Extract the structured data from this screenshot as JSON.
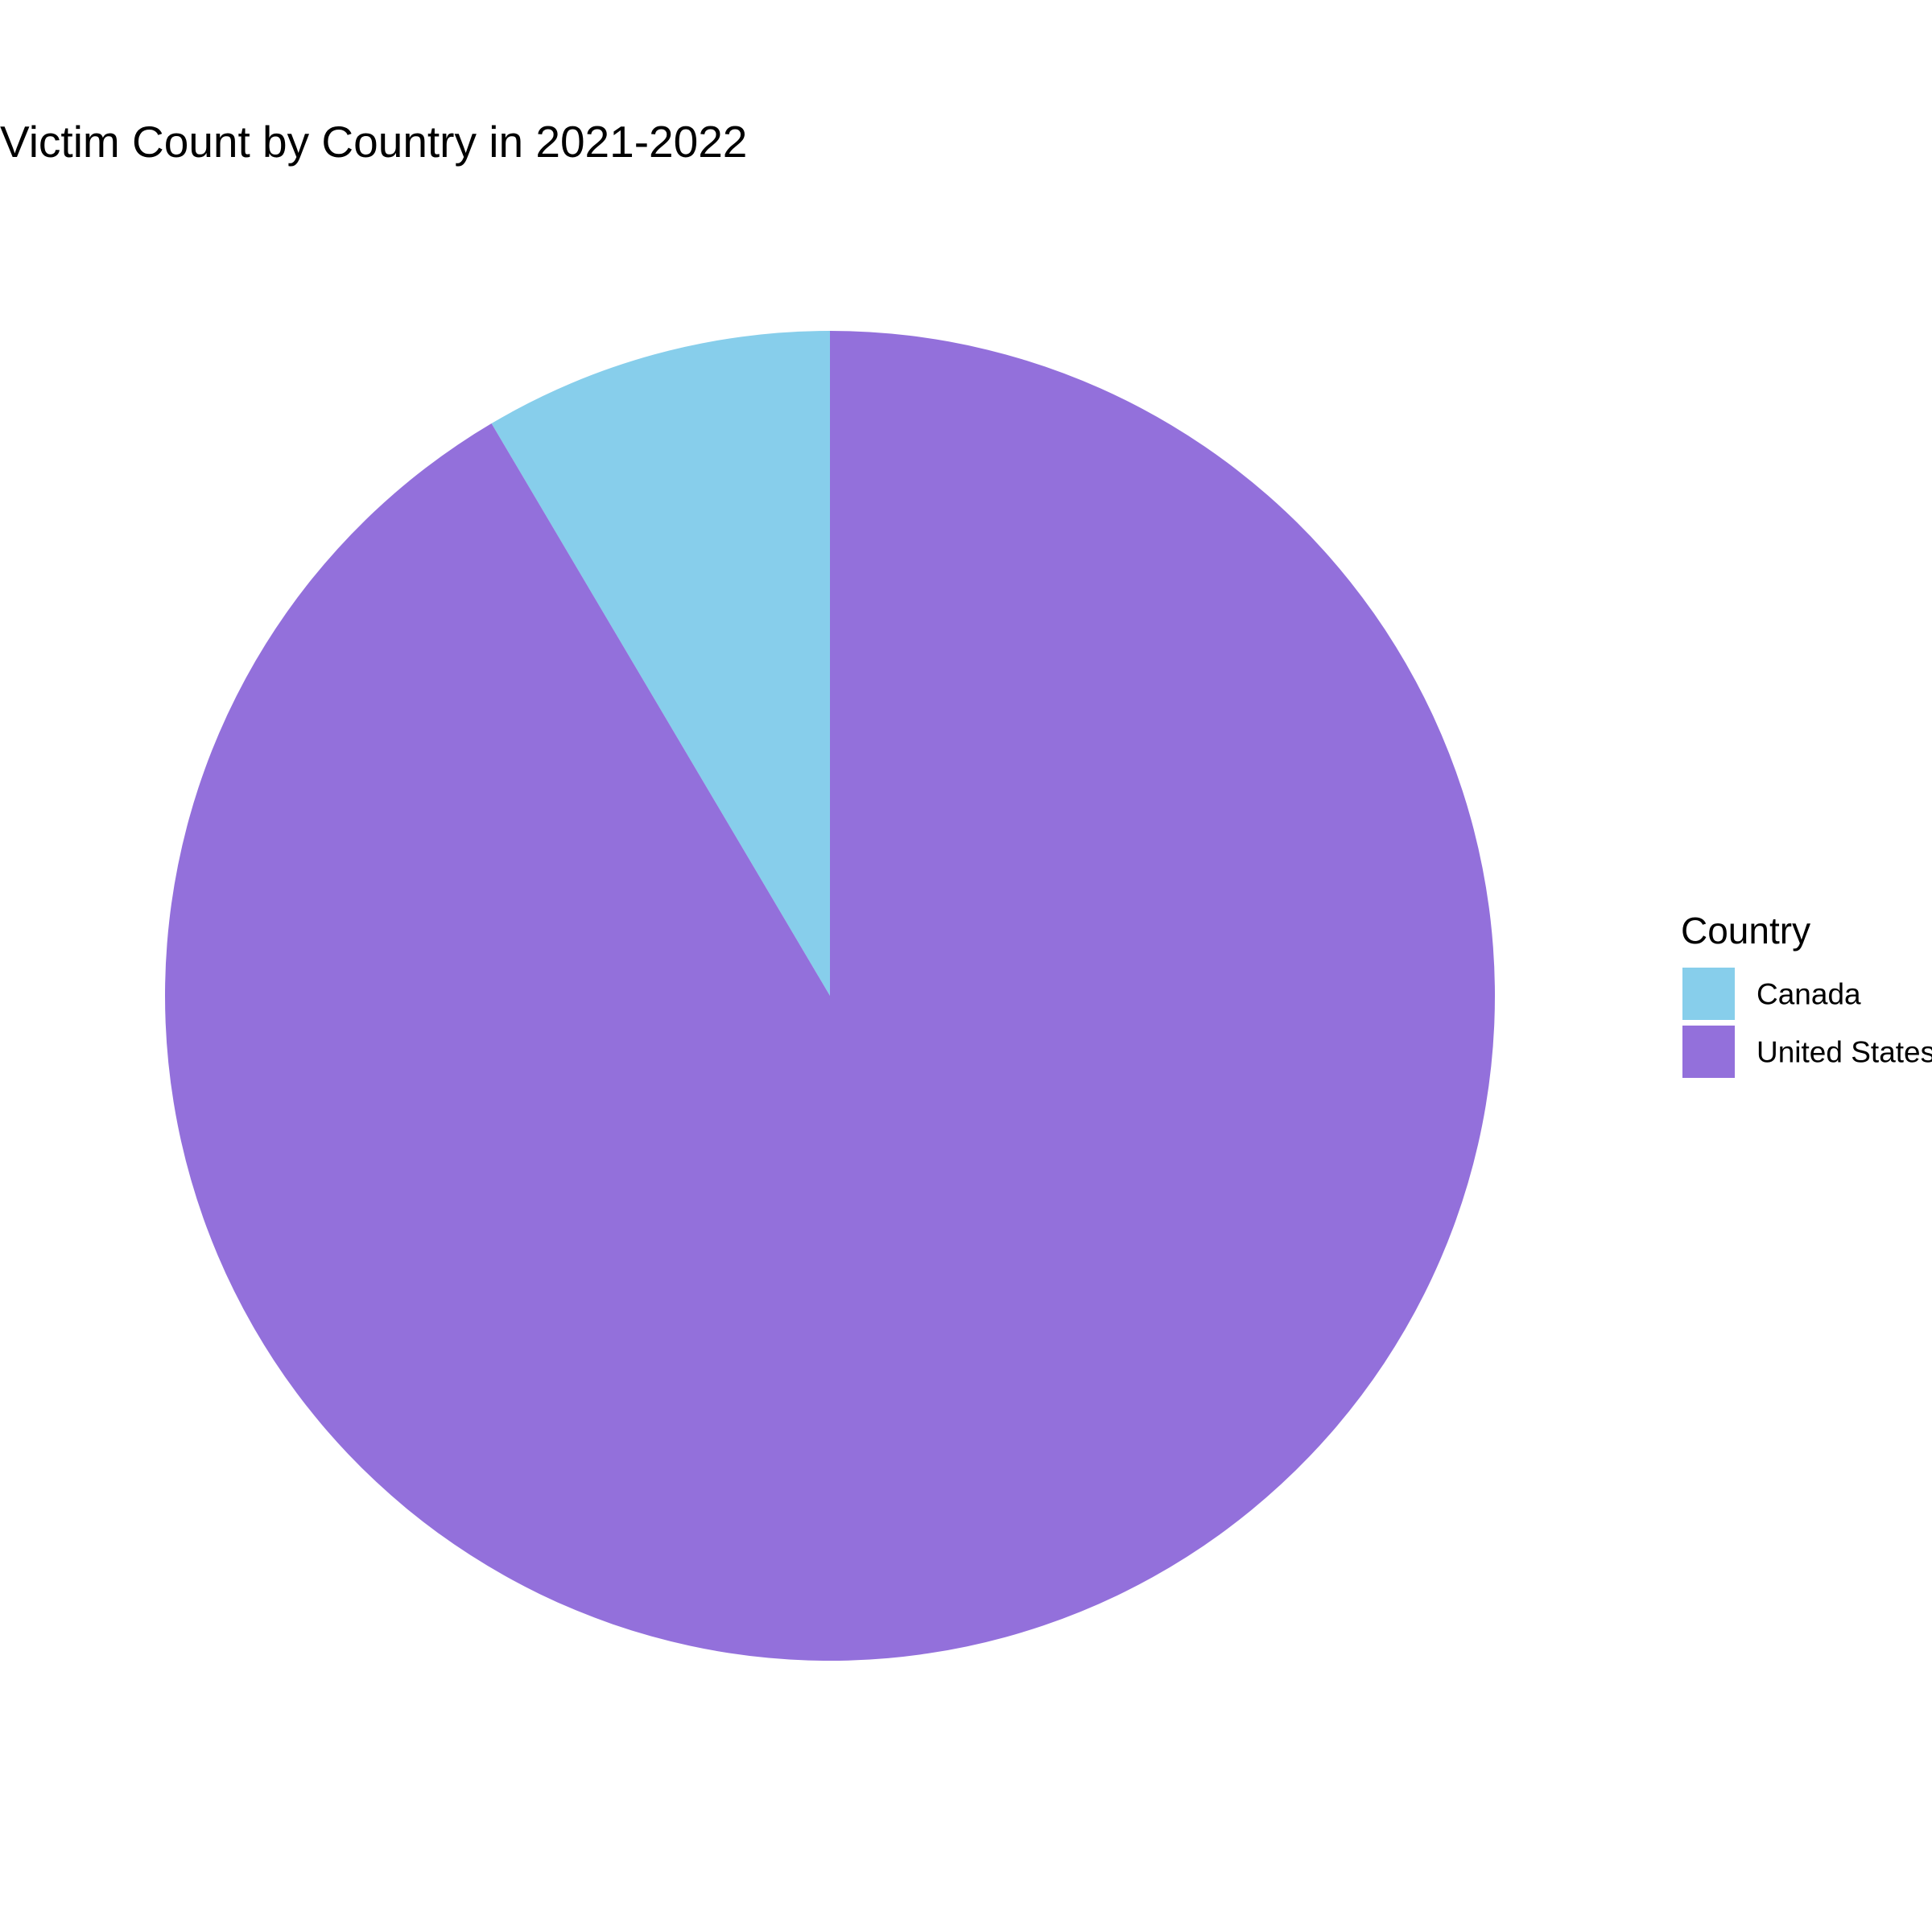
{
  "chart_data": {
    "type": "pie",
    "title": "Victim Count by Country in 2021-2022",
    "categories": [
      "Canada",
      "United States"
    ],
    "values": [
      8.5,
      91.5
    ],
    "value_unit": "percent of total (estimated)",
    "colors": [
      "#87CEEB",
      "#9370DB"
    ],
    "start_angle": "12 o'clock",
    "direction": "counterclockwise",
    "legend": {
      "title": "Country",
      "placement": "right",
      "entries": [
        "Canada",
        "United States"
      ]
    }
  }
}
